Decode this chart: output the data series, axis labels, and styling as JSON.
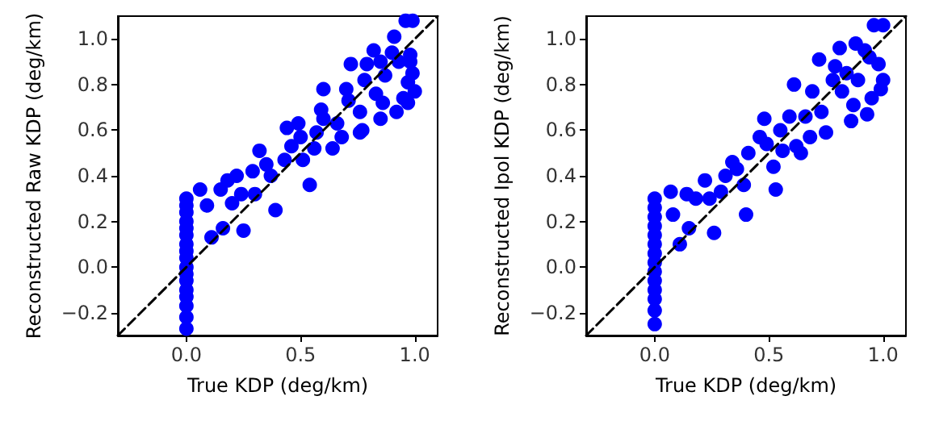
{
  "chart_data": [
    {
      "type": "scatter",
      "xlabel": "True KDP (deg/km)",
      "ylabel": "Reconstructed Raw KDP (deg/km)",
      "marker": "circle",
      "grid": false,
      "xlim": [
        -0.3,
        1.1
      ],
      "ylim": [
        -0.3,
        1.1
      ],
      "xticks": [
        {
          "value": 0,
          "label": "0.0"
        },
        {
          "value": 0.5,
          "label": "0.5"
        },
        {
          "value": 1,
          "label": "1.0"
        }
      ],
      "yticks": [
        {
          "value": -0.2,
          "label": "−0.2"
        },
        {
          "value": 0,
          "label": "0.0"
        },
        {
          "value": 0.2,
          "label": "0.2"
        },
        {
          "value": 0.4,
          "label": "0.4"
        },
        {
          "value": 0.6,
          "label": "0.6"
        },
        {
          "value": 0.8,
          "label": "0.8"
        },
        {
          "value": 1,
          "label": "1.0"
        }
      ],
      "series": [
        {
          "color": "#0000ff",
          "x": [
            0,
            0,
            0,
            0,
            0,
            0,
            0,
            0,
            0,
            0,
            0,
            0,
            0,
            0,
            0,
            0,
            0,
            0.06,
            0.09,
            0.11,
            0.16,
            0.15,
            0.18,
            0.22,
            0.2,
            0.25,
            0.24,
            0.3,
            0.29,
            0.32,
            0.35,
            0.39,
            0.37,
            0.43,
            0.46,
            0.44,
            0.49,
            0.51,
            0.54,
            0.5,
            0.56,
            0.57,
            0.59,
            0.6,
            0.64,
            0.66,
            0.68,
            0.7,
            0.72,
            0.71,
            0.76,
            0.77,
            0.78,
            0.79,
            0.82,
            0.83,
            0.85,
            0.86,
            0.87,
            0.9,
            0.91,
            0.92,
            0.95,
            0.97,
            0.98,
            0.99,
            1.0,
            0.97,
            0.96,
            0.99,
            0.98,
            0.93,
            0.85,
            0.76,
            0.6
          ],
          "values": [
            0.3,
            0.27,
            0.24,
            0.2,
            0.17,
            0.14,
            0.1,
            0.07,
            0.04,
            0.0,
            -0.03,
            -0.06,
            -0.1,
            -0.13,
            -0.17,
            -0.22,
            -0.27,
            0.34,
            0.27,
            0.13,
            0.17,
            0.34,
            0.38,
            0.4,
            0.28,
            0.16,
            0.32,
            0.32,
            0.42,
            0.51,
            0.45,
            0.25,
            0.4,
            0.47,
            0.53,
            0.61,
            0.63,
            0.47,
            0.36,
            0.57,
            0.52,
            0.59,
            0.69,
            0.78,
            0.52,
            0.63,
            0.57,
            0.78,
            0.89,
            0.73,
            0.68,
            0.6,
            0.82,
            0.89,
            0.95,
            0.76,
            0.65,
            0.72,
            0.84,
            0.94,
            1.01,
            0.68,
            0.74,
            0.81,
            0.9,
            0.85,
            0.77,
            0.72,
            1.08,
            1.08,
            0.93,
            0.9,
            0.9,
            0.59,
            0.65
          ]
        },
        {
          "type": "line",
          "color": "#000000",
          "line_style": "dashed",
          "marker": "none",
          "x": [
            -0.3,
            1.1
          ],
          "values": [
            -0.3,
            1.1
          ]
        }
      ]
    },
    {
      "type": "scatter",
      "xlabel": "True KDP (deg/km)",
      "ylabel": "Reconstructed Ipol KDP (deg/km)",
      "marker": "circle",
      "grid": false,
      "xlim": [
        -0.3,
        1.1
      ],
      "ylim": [
        -0.3,
        1.1
      ],
      "xticks": [
        {
          "value": 0,
          "label": "0.0"
        },
        {
          "value": 0.5,
          "label": "0.5"
        },
        {
          "value": 1,
          "label": "1.0"
        }
      ],
      "yticks": [
        {
          "value": -0.2,
          "label": "−0.2"
        },
        {
          "value": 0,
          "label": "0.0"
        },
        {
          "value": 0.2,
          "label": "0.2"
        },
        {
          "value": 0.4,
          "label": "0.4"
        },
        {
          "value": 0.6,
          "label": "0.6"
        },
        {
          "value": 0.8,
          "label": "0.8"
        },
        {
          "value": 1,
          "label": "1.0"
        }
      ],
      "series": [
        {
          "color": "#0000ff",
          "x": [
            0,
            0,
            0,
            0,
            0,
            0,
            0,
            0,
            0,
            0,
            0,
            0,
            0,
            0,
            0.07,
            0.08,
            0.11,
            0.14,
            0.15,
            0.18,
            0.22,
            0.24,
            0.26,
            0.29,
            0.31,
            0.34,
            0.36,
            0.39,
            0.4,
            0.41,
            0.46,
            0.48,
            0.49,
            0.52,
            0.53,
            0.55,
            0.56,
            0.59,
            0.62,
            0.64,
            0.61,
            0.66,
            0.68,
            0.69,
            0.72,
            0.73,
            0.75,
            0.78,
            0.79,
            0.81,
            0.82,
            0.86,
            0.87,
            0.88,
            0.89,
            0.93,
            0.95,
            0.94,
            0.98,
            1.0,
            0.99,
            0.96,
            1.0,
            0.92,
            0.84
          ],
          "values": [
            0.3,
            0.26,
            0.22,
            0.18,
            0.14,
            0.1,
            0.06,
            0.02,
            -0.02,
            -0.06,
            -0.1,
            -0.14,
            -0.19,
            -0.25,
            0.33,
            0.23,
            0.1,
            0.32,
            0.17,
            0.3,
            0.38,
            0.3,
            0.15,
            0.33,
            0.4,
            0.46,
            0.43,
            0.36,
            0.23,
            0.5,
            0.57,
            0.65,
            0.54,
            0.44,
            0.34,
            0.6,
            0.51,
            0.66,
            0.53,
            0.5,
            0.8,
            0.66,
            0.57,
            0.77,
            0.91,
            0.68,
            0.59,
            0.82,
            0.88,
            0.96,
            0.77,
            0.64,
            0.71,
            0.98,
            0.82,
            0.67,
            0.74,
            0.92,
            0.89,
            0.82,
            0.78,
            1.06,
            1.06,
            0.95,
            0.85
          ]
        },
        {
          "type": "line",
          "color": "#000000",
          "line_style": "dashed",
          "marker": "none",
          "x": [
            -0.3,
            1.1
          ],
          "values": [
            -0.3,
            1.1
          ]
        }
      ]
    }
  ]
}
